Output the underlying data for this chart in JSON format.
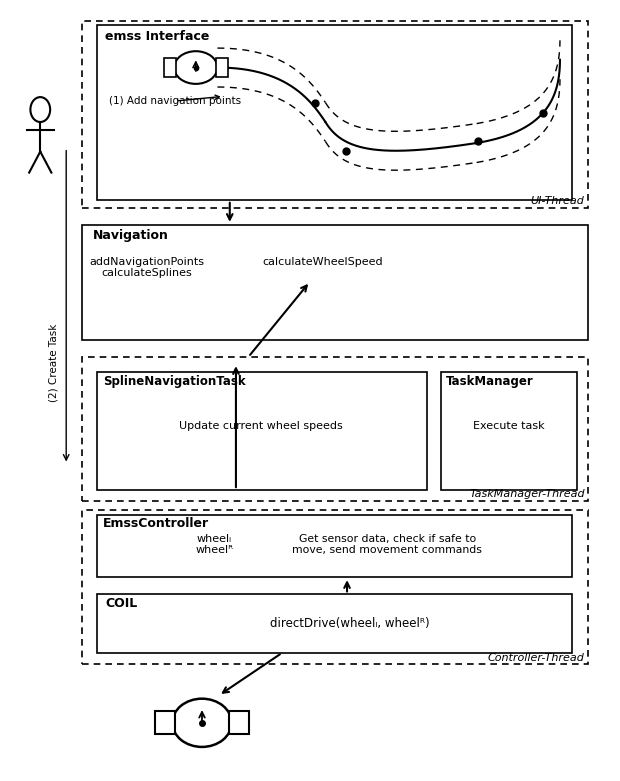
{
  "bg_color": "#ffffff",
  "ui_thread_label": "UI-Thread",
  "ui_interface_label": "emss Interface",
  "nav_label": "Navigation",
  "nav_text1": "addNavigationPoints\ncalculateSplines",
  "nav_text2": "calculateWheelSpeed",
  "task_thread_label": "TaskManager-Thread",
  "spline_label": "SplineNavigationTask",
  "spline_text": "Update current wheel speeds",
  "taskmgr_label": "TaskManager",
  "taskmgr_text": "Execute task",
  "ctrl_thread_label": "Controller-Thread",
  "emss_label": "EmssController",
  "emss_text1": "wheelₗ\nwheelᴿ",
  "emss_text2": "Get sensor data, check if safe to\nmove, send movement commands",
  "coil_label": "COIL",
  "coil_text": "directDrive(wheelₗ, wheelᴿ)",
  "add_nav_label": "(1) Add navigation points",
  "create_task_label": "(2) Create Task"
}
